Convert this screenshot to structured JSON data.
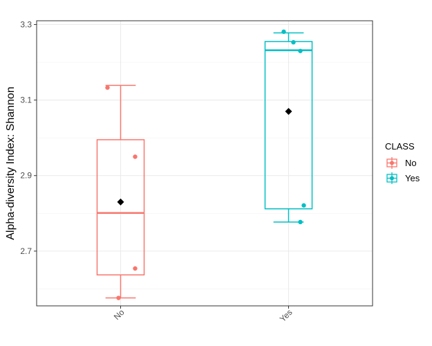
{
  "chart_data": {
    "type": "box",
    "title": "",
    "xlabel": "",
    "ylabel": "Alpha-diversity Index: Shannon",
    "ylim": [
      2.555,
      3.31
    ],
    "y_ticks": [
      2.7,
      2.9,
      3.1,
      3.3
    ],
    "y_tick_labels": [
      "2.7",
      "2.9",
      "3.1",
      "3.3"
    ],
    "grid": true,
    "categories": [
      "No",
      "Yes"
    ],
    "legend": {
      "title": "CLASS",
      "placement": "right",
      "entries": [
        "No",
        "Yes"
      ]
    },
    "series": [
      {
        "name": "No",
        "color": "#F8766D",
        "box": {
          "whisker_low": 2.576,
          "q1": 2.637,
          "median": 2.801,
          "q3": 2.995,
          "whisker_high": 3.139
        },
        "mean": 2.83,
        "points": [
          3.133,
          2.95,
          2.654,
          2.576
        ]
      },
      {
        "name": "Yes",
        "color": "#00BFC4",
        "box": {
          "whisker_low": 2.777,
          "q1": 2.812,
          "median": 3.232,
          "q3": 3.255,
          "whisker_high": 3.278
        },
        "mean": 3.07,
        "points": [
          3.281,
          3.253,
          3.23,
          2.821,
          2.777
        ]
      }
    ]
  }
}
